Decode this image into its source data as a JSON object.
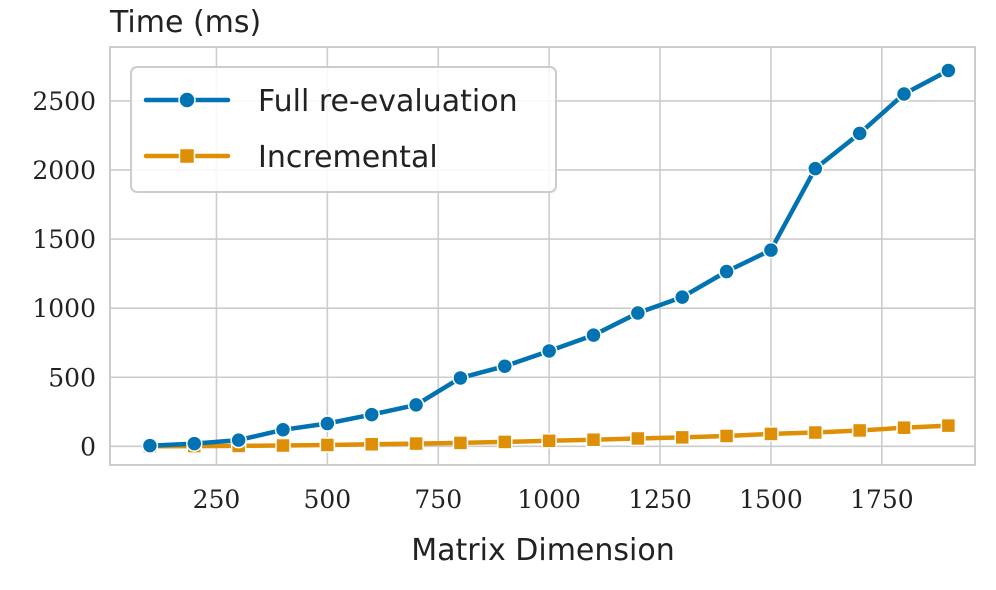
{
  "chart_data": {
    "type": "line",
    "title": "",
    "xlabel": "Matrix Dimension",
    "ylabel": "Time (ms)",
    "xlim": [
      10,
      1960
    ],
    "ylim": [
      -135,
      2890
    ],
    "x_ticks": [
      250,
      500,
      750,
      1000,
      1250,
      1500,
      1750
    ],
    "y_ticks": [
      0,
      500,
      1000,
      1500,
      2000,
      2500
    ],
    "grid": true,
    "legend_position": "top-left",
    "x": [
      100,
      200,
      300,
      400,
      500,
      600,
      700,
      800,
      900,
      1000,
      1100,
      1200,
      1300,
      1400,
      1500,
      1600,
      1700,
      1800,
      1900
    ],
    "series": [
      {
        "name": "Full re-evaluation",
        "color": "#0173b2",
        "marker": "circle",
        "values": [
          5,
          20,
          45,
          120,
          165,
          230,
          300,
          495,
          580,
          690,
          805,
          965,
          1080,
          1265,
          1420,
          2010,
          2265,
          2550,
          2720
        ]
      },
      {
        "name": "Incremental",
        "color": "#de8f05",
        "marker": "square",
        "values": [
          1,
          2,
          3,
          6,
          10,
          15,
          20,
          25,
          32,
          40,
          48,
          57,
          65,
          75,
          90,
          100,
          115,
          135,
          150
        ]
      }
    ]
  }
}
